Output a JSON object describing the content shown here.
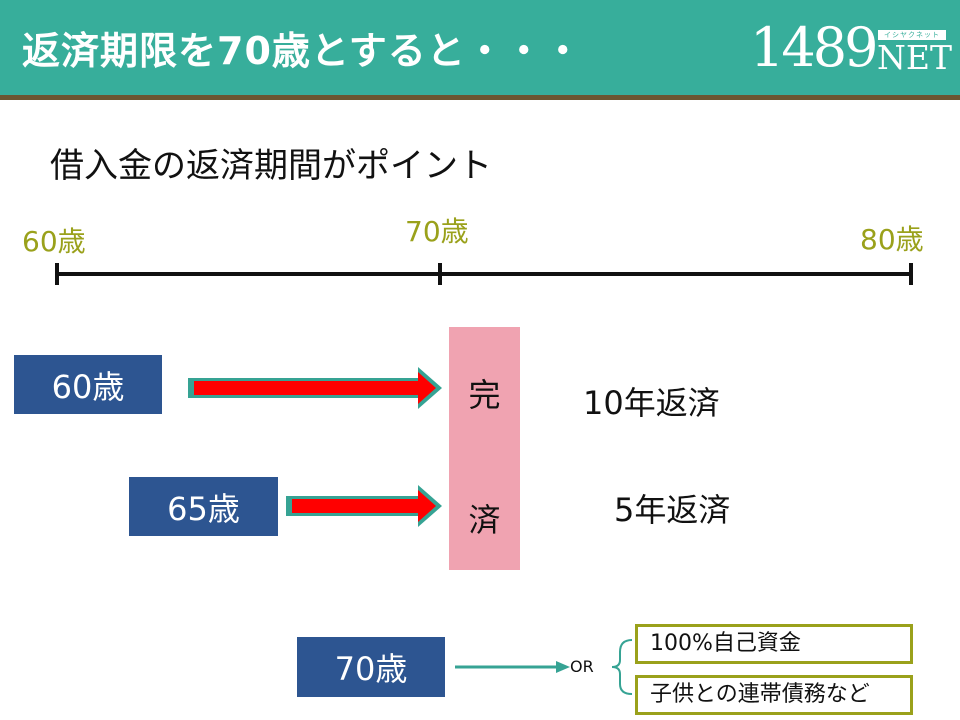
{
  "header": {
    "title": "返済期限を70歳とすると・・・",
    "logo_number": "1489",
    "logo_kana": "イシヤクネット",
    "logo_net": "NET"
  },
  "subtitle": "借入金の返済期間がポイント",
  "timeline": {
    "start_label": "60歳",
    "mid_label": "70歳",
    "end_label": "80歳"
  },
  "rows": [
    {
      "start_age": "60歳",
      "return_text": "10年返済"
    },
    {
      "start_age": "65歳",
      "return_text": "5年返済"
    }
  ],
  "complete_block": {
    "char_top": "完",
    "char_bottom": "済"
  },
  "bottom": {
    "age": "70歳",
    "or_label": "OR",
    "options": [
      "100%自己資金",
      "子供との連帯債務など"
    ]
  },
  "colors": {
    "header_bg": "#37ae9b",
    "header_rule": "#6b5631",
    "box_blue": "#2d5591",
    "arrow_red": "#ff0000",
    "arrow_teal": "#36a394",
    "pink_block": "#f0a3b1",
    "age_label_olive": "#9aa11b"
  }
}
